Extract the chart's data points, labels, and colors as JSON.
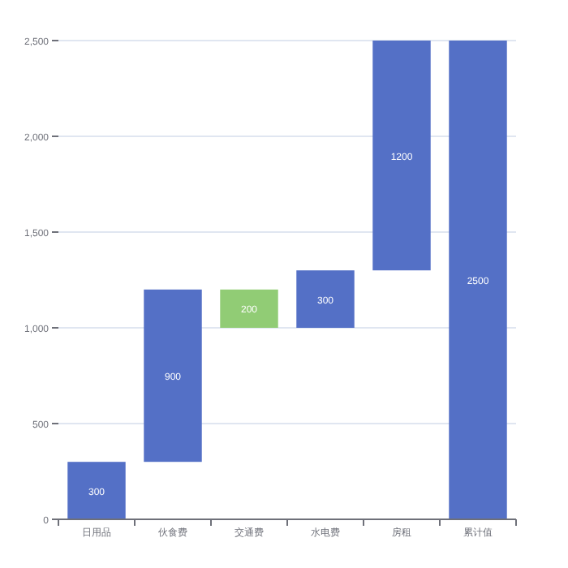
{
  "chart_data": {
    "type": "bar",
    "categories": [
      "日用品",
      "伙食费",
      "交通费",
      "水电费",
      "房租",
      "累计值"
    ],
    "values": [
      300,
      900,
      200,
      300,
      1200,
      2500
    ],
    "base": [
      0,
      300,
      1000,
      1000,
      1300,
      0
    ],
    "colors": [
      "#5470c6",
      "#5470c6",
      "#91cc75",
      "#5470c6",
      "#5470c6",
      "#5470c6"
    ],
    "ylim": [
      0,
      2500
    ],
    "yticks": [
      {
        "value": 0,
        "label": "0"
      },
      {
        "value": 500,
        "label": "500"
      },
      {
        "value": 1000,
        "label": "1,000"
      },
      {
        "value": 1500,
        "label": "1,500"
      },
      {
        "value": 2000,
        "label": "2,000"
      },
      {
        "value": 2500,
        "label": "2,500"
      }
    ],
    "grid": "y",
    "data_labels": true
  }
}
